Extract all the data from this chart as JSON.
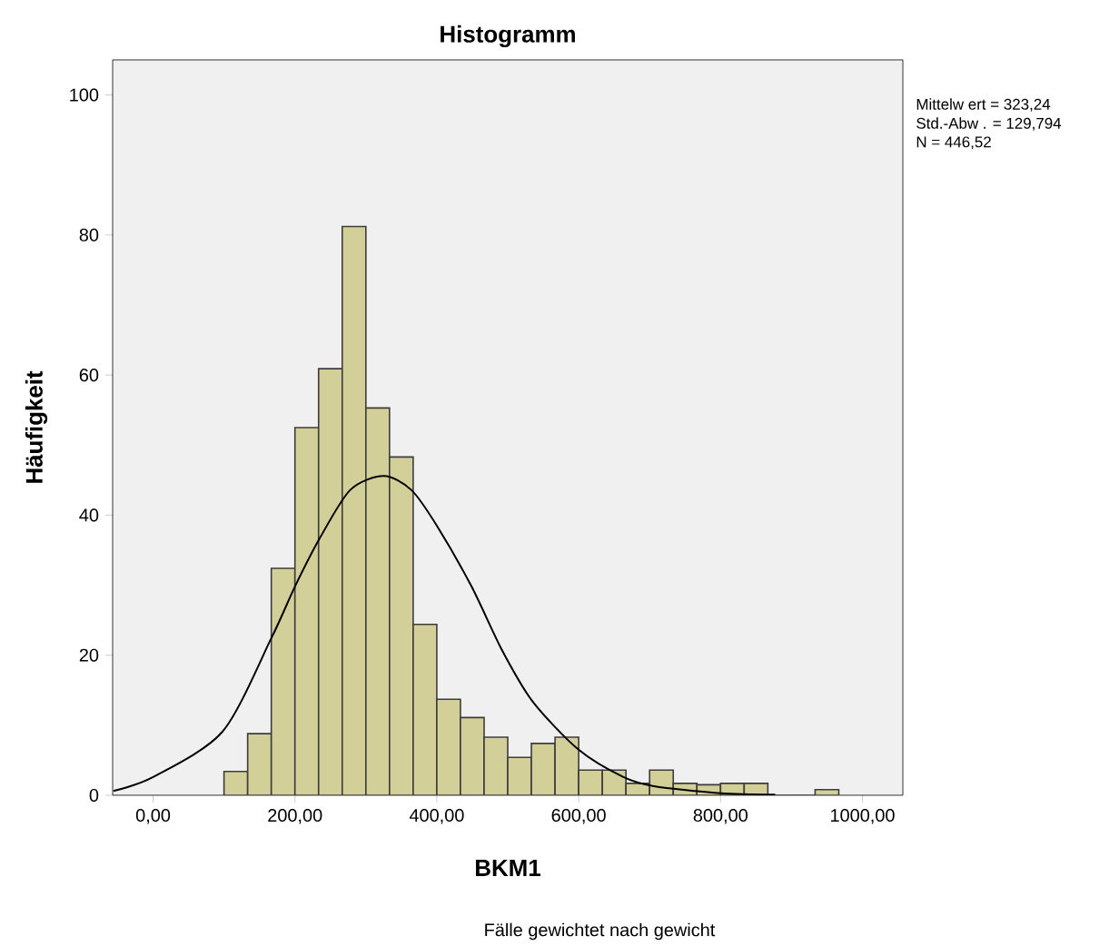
{
  "chart_data": {
    "type": "histogram",
    "title": "Histogramm",
    "xlabel": "BKM1",
    "ylabel": "Häufigkeit",
    "bins": [
      100,
      133.33,
      166.67,
      200,
      233.33,
      266.67,
      300,
      333.33,
      366.67,
      400,
      433.33,
      466.67,
      500,
      533.33,
      566.67,
      600,
      633.33,
      666.67,
      700,
      733.33,
      766.67,
      800,
      833.33,
      866.67,
      900,
      933.33,
      966.67
    ],
    "values": [
      3.4,
      8.8,
      32.4,
      52.5,
      60.9,
      81.2,
      55.3,
      48.3,
      24.4,
      13.7,
      11.1,
      8.3,
      5.4,
      7.4,
      8.3,
      3.6,
      3.6,
      1.7,
      3.6,
      1.7,
      1.5,
      1.7,
      1.7,
      0,
      0,
      0.8
    ],
    "color": "#d3cf98",
    "series": [
      {
        "type": "line",
        "color": "#000000",
        "x": [
          -56,
          0,
          98,
          167,
          200,
          235,
          278,
          325,
          364,
          400,
          449,
          492,
          535,
          600,
          663,
          706,
          800,
          877
        ],
        "values": [
          0.6,
          2.6,
          9.1,
          22.5,
          29.8,
          36.7,
          43.6,
          45.6,
          43.6,
          38.5,
          29.8,
          20.7,
          13.4,
          6.5,
          2.6,
          1.3,
          0.3,
          0.1
        ]
      }
    ],
    "xlim": [
      -57,
      1057
    ],
    "ylim": [
      0,
      105
    ],
    "xticks": [
      {
        "value": 0,
        "label": "0,00"
      },
      {
        "value": 200,
        "label": "200,00"
      },
      {
        "value": 400,
        "label": "400,00"
      },
      {
        "value": 600,
        "label": "600,00"
      },
      {
        "value": 800,
        "label": "800,00"
      },
      {
        "value": 1000,
        "label": "1000,00"
      }
    ],
    "yticks": [
      0,
      20,
      40,
      60,
      80,
      100
    ],
    "annotations": [
      "Mittelw ert = 323,24",
      "Std.-Abw . = 129,794",
      "N = 446,52",
      "Fälle gewichtet nach gewicht"
    ]
  }
}
